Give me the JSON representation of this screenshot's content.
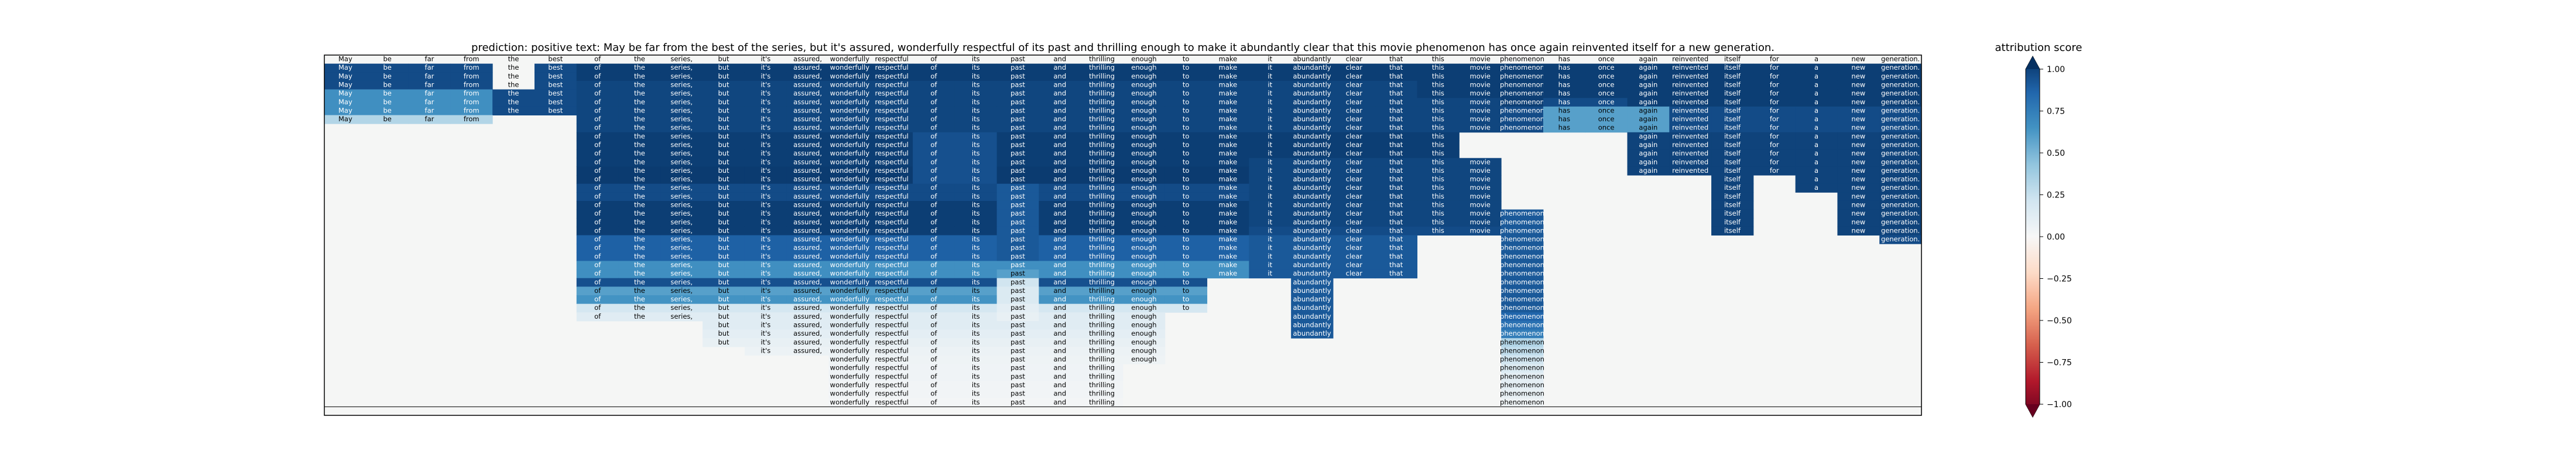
{
  "chart_data": {
    "type": "heatmap",
    "title": "prediction:  positive     text:  May be far from the best of the series, but it's assured, wonderfully respectful of its past and thrilling enough to make it abundantly clear that this movie phenomenon has once again reinvented itself for a new generation.",
    "prediction": "positive",
    "tokens": [
      "May",
      "be",
      "far",
      "from",
      "the",
      "best",
      "of",
      "the",
      "series,",
      "but",
      "it's",
      "assured,",
      "wonderfully",
      "respectful",
      "of",
      "its",
      "past",
      "and",
      "thrilling",
      "enough",
      "to",
      "make",
      "it",
      "abundantly",
      "clear",
      "that",
      "this",
      "movie",
      "phenomenon",
      "has",
      "once",
      "again",
      "reinvented",
      "itself",
      "for",
      "a",
      "new",
      "generation."
    ],
    "row_count": 42,
    "spans": [
      [
        0,
        0,
        41,
        0.0
      ],
      [
        1,
        0,
        3,
        0.9
      ],
      [
        2,
        0,
        3,
        0.9
      ],
      [
        3,
        0,
        3,
        0.9
      ],
      [
        4,
        0,
        3,
        0.62
      ],
      [
        5,
        0,
        3,
        0.62
      ],
      [
        6,
        0,
        3,
        0.62
      ],
      [
        7,
        0,
        3,
        0.3
      ],
      [
        4,
        4,
        5,
        0.9
      ],
      [
        5,
        4,
        5,
        0.9
      ],
      [
        6,
        4,
        5,
        0.9
      ],
      [
        1,
        6,
        29,
        0.95
      ],
      [
        2,
        6,
        29,
        0.95
      ],
      [
        3,
        6,
        28,
        0.92
      ],
      [
        4,
        6,
        28,
        0.92
      ],
      [
        5,
        6,
        28,
        0.92
      ],
      [
        6,
        6,
        28,
        0.92
      ],
      [
        7,
        6,
        28,
        0.92
      ],
      [
        8,
        6,
        28,
        0.92
      ],
      [
        9,
        6,
        26,
        0.95
      ],
      [
        10,
        6,
        26,
        0.95
      ],
      [
        11,
        6,
        26,
        0.95
      ],
      [
        12,
        6,
        26,
        0.95
      ],
      [
        13,
        6,
        24,
        0.96
      ],
      [
        14,
        6,
        24,
        0.96
      ],
      [
        15,
        6,
        22,
        0.9
      ],
      [
        16,
        6,
        22,
        0.9
      ],
      [
        17,
        6,
        22,
        0.95
      ],
      [
        18,
        6,
        22,
        0.95
      ],
      [
        19,
        6,
        22,
        0.95
      ],
      [
        20,
        6,
        22,
        0.95
      ],
      [
        21,
        6,
        22,
        0.82
      ],
      [
        22,
        6,
        22,
        0.82
      ],
      [
        23,
        6,
        22,
        0.82
      ],
      [
        24,
        6,
        22,
        0.62
      ],
      [
        25,
        6,
        22,
        0.62
      ],
      [
        26,
        6,
        20,
        0.88
      ],
      [
        27,
        6,
        20,
        0.55
      ],
      [
        28,
        6,
        20,
        0.6
      ],
      [
        29,
        6,
        20,
        0.18
      ],
      [
        30,
        6,
        19,
        0.12
      ],
      [
        31,
        9,
        19,
        0.12
      ],
      [
        32,
        9,
        19,
        0.1
      ],
      [
        33,
        9,
        19,
        0.08
      ],
      [
        34,
        10,
        19,
        0.06
      ],
      [
        35,
        12,
        19,
        0.05
      ],
      [
        36,
        12,
        18,
        0.04
      ],
      [
        37,
        12,
        18,
        0.04
      ],
      [
        38,
        12,
        18,
        0.03
      ],
      [
        39,
        12,
        18,
        0.03
      ],
      [
        40,
        12,
        18,
        0.02
      ],
      [
        9,
        14,
        15,
        0.88
      ],
      [
        10,
        14,
        15,
        0.88
      ],
      [
        11,
        14,
        15,
        0.88
      ],
      [
        12,
        14,
        15,
        0.88
      ],
      [
        13,
        14,
        15,
        0.88
      ],
      [
        14,
        14,
        15,
        0.88
      ],
      [
        15,
        16,
        16,
        0.85
      ],
      [
        16,
        16,
        16,
        0.85
      ],
      [
        17,
        16,
        16,
        0.85
      ],
      [
        18,
        16,
        16,
        0.85
      ],
      [
        19,
        16,
        16,
        0.85
      ],
      [
        20,
        16,
        16,
        0.85
      ],
      [
        21,
        16,
        16,
        0.85
      ],
      [
        22,
        16,
        16,
        0.85
      ],
      [
        23,
        16,
        16,
        0.85
      ],
      [
        24,
        16,
        16,
        0.62
      ],
      [
        25,
        16,
        16,
        0.55
      ],
      [
        26,
        16,
        16,
        0.2
      ],
      [
        27,
        16,
        16,
        0.15
      ],
      [
        28,
        16,
        16,
        0.15
      ],
      [
        29,
        16,
        16,
        0.1
      ],
      [
        30,
        16,
        16,
        0.08
      ],
      [
        12,
        22,
        27,
        0.92
      ],
      [
        13,
        22,
        27,
        0.92
      ],
      [
        14,
        22,
        27,
        0.92
      ],
      [
        15,
        22,
        27,
        0.92
      ],
      [
        16,
        22,
        27,
        0.92
      ],
      [
        17,
        22,
        27,
        0.92
      ],
      [
        18,
        22,
        27,
        0.92
      ],
      [
        19,
        22,
        27,
        0.92
      ],
      [
        20,
        22,
        27,
        0.9
      ],
      [
        16,
        22,
        27,
        0.92
      ],
      [
        17,
        22,
        27,
        0.92
      ],
      [
        18,
        22,
        27,
        0.92
      ],
      [
        19,
        22,
        27,
        0.92
      ],
      [
        21,
        22,
        25,
        0.85
      ],
      [
        22,
        22,
        25,
        0.85
      ],
      [
        23,
        22,
        25,
        0.85
      ],
      [
        24,
        22,
        25,
        0.85
      ],
      [
        25,
        22,
        25,
        0.85
      ],
      [
        26,
        23,
        23,
        0.85
      ],
      [
        27,
        23,
        23,
        0.85
      ],
      [
        28,
        23,
        23,
        0.85
      ],
      [
        29,
        23,
        23,
        0.85
      ],
      [
        30,
        23,
        23,
        0.85
      ],
      [
        31,
        23,
        23,
        0.85
      ],
      [
        32,
        23,
        23,
        0.85
      ],
      [
        1,
        26,
        41,
        0.95
      ],
      [
        2,
        26,
        41,
        0.95
      ],
      [
        3,
        26,
        41,
        0.95
      ],
      [
        4,
        26,
        41,
        0.95
      ],
      [
        5,
        28,
        41,
        0.95
      ],
      [
        6,
        28,
        41,
        0.9
      ],
      [
        7,
        28,
        41,
        0.9
      ],
      [
        8,
        28,
        41,
        0.9
      ],
      [
        5,
        29,
        30,
        0.9
      ],
      [
        6,
        29,
        31,
        0.55
      ],
      [
        7,
        29,
        31,
        0.55
      ],
      [
        8,
        29,
        31,
        0.55
      ],
      [
        9,
        31,
        41,
        0.93
      ],
      [
        10,
        31,
        41,
        0.93
      ],
      [
        11,
        31,
        41,
        0.93
      ],
      [
        12,
        31,
        41,
        0.93
      ],
      [
        13,
        31,
        41,
        0.93
      ],
      [
        14,
        33,
        33,
        0.93
      ],
      [
        15,
        33,
        33,
        0.93
      ],
      [
        16,
        33,
        33,
        0.93
      ],
      [
        17,
        33,
        33,
        0.93
      ],
      [
        18,
        33,
        33,
        0.93
      ],
      [
        19,
        33,
        33,
        0.93
      ],
      [
        20,
        33,
        33,
        0.93
      ],
      [
        14,
        35,
        37,
        0.93
      ],
      [
        15,
        35,
        37,
        0.93
      ],
      [
        16,
        36,
        37,
        0.93
      ],
      [
        17,
        36,
        37,
        0.93
      ],
      [
        18,
        36,
        37,
        0.93
      ],
      [
        19,
        36,
        37,
        0.93
      ],
      [
        20,
        36,
        37,
        0.93
      ],
      [
        21,
        37,
        37,
        0.9
      ],
      [
        18,
        28,
        28,
        0.85
      ],
      [
        19,
        28,
        28,
        0.85
      ],
      [
        20,
        28,
        28,
        0.85
      ],
      [
        21,
        28,
        28,
        0.85
      ],
      [
        22,
        28,
        28,
        0.85
      ],
      [
        23,
        28,
        28,
        0.85
      ],
      [
        24,
        28,
        28,
        0.85
      ],
      [
        25,
        28,
        28,
        0.85
      ],
      [
        26,
        28,
        28,
        0.85
      ],
      [
        27,
        28,
        28,
        0.85
      ],
      [
        28,
        28,
        28,
        0.85
      ],
      [
        29,
        28,
        28,
        0.85
      ],
      [
        30,
        28,
        28,
        0.8
      ],
      [
        31,
        28,
        28,
        0.75
      ],
      [
        32,
        28,
        28,
        0.7
      ],
      [
        33,
        28,
        28,
        0.3
      ],
      [
        34,
        28,
        28,
        0.25
      ],
      [
        35,
        28,
        28,
        0.2
      ],
      [
        36,
        28,
        28,
        0.15
      ],
      [
        37,
        28,
        28,
        0.1
      ],
      [
        38,
        28,
        28,
        0.1
      ],
      [
        39,
        28,
        28,
        0.08
      ],
      [
        40,
        28,
        28,
        0.05
      ],
      [
        1,
        4,
        5,
        0.0
      ],
      [
        2,
        4,
        5,
        0.0
      ],
      [
        3,
        4,
        5,
        0.0
      ],
      [
        1,
        5,
        5,
        0.9
      ],
      [
        2,
        5,
        5,
        0.9
      ],
      [
        3,
        5,
        5,
        0.9
      ]
    ],
    "colorbar": {
      "title": "attribution score",
      "ticks": [
        "1.00",
        "0.75",
        "0.50",
        "0.25",
        "0.00",
        "−0.25",
        "−0.50",
        "−0.75",
        "−1.00"
      ],
      "range": [
        -1,
        1
      ],
      "colormap": "RdBu"
    },
    "colors": {
      "background": "#f5f6f5",
      "grid": "#000000"
    }
  }
}
